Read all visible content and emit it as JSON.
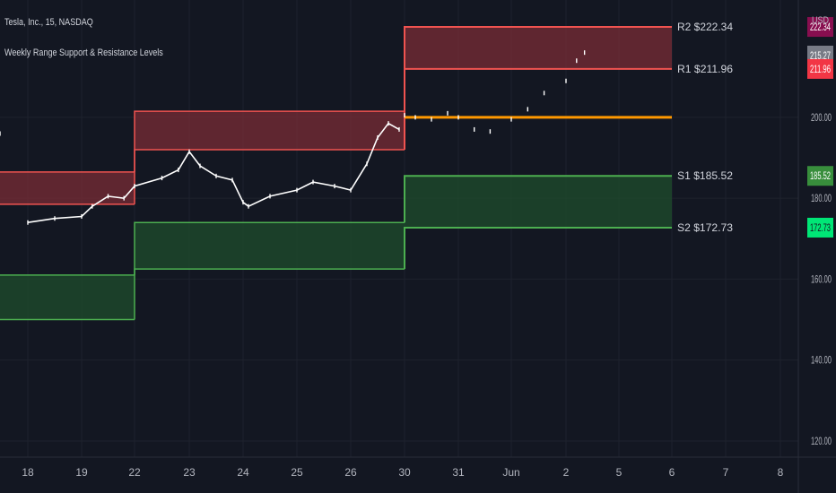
{
  "header": {
    "symbol_line": "Tesla, Inc., 15, NASDAQ",
    "indicator_line": "Weekly Range Support & Resistance Levels"
  },
  "price_axis": {
    "currency": "USD"
  },
  "colors": {
    "background": "#131722",
    "grid": "#1e222d",
    "resistance_line": "#f05350",
    "resistance_fill": "#7a2c35",
    "support_line": "#4caf50",
    "support_fill": "#1e4a2c",
    "pivot_line": "#ff9800",
    "price_series": "#ffffff",
    "axis_text": "#b2b5be",
    "r2_tag": "#880e4f",
    "r1_tag": "#f23645",
    "last_price_tag": "#787b86",
    "s1_tag": "#388e3c",
    "s2_tag": "#00e676"
  },
  "chart_data": {
    "type": "line",
    "ylim": [
      116,
      229
    ],
    "x_ticks": [
      "18",
      "19",
      "22",
      "23",
      "24",
      "25",
      "26",
      "30",
      "31",
      "Jun",
      "2",
      "5",
      "6",
      "7",
      "8"
    ],
    "y_ticks": [
      "120.00",
      "140.00",
      "160.00",
      "180.00",
      "200.00"
    ],
    "levels": [
      {
        "name": "week1",
        "start_label": "",
        "end_label": "22",
        "r2": 186.5,
        "r1": 178.5,
        "s1": 161.0,
        "s2": 150.0
      },
      {
        "name": "week2",
        "start_label": "22",
        "end_label": "30",
        "r2": 201.5,
        "r1": 192.0,
        "s1": 174.0,
        "s2": 162.5
      },
      {
        "name": "week3",
        "start_label": "30",
        "end_label": "6",
        "r2": 222.34,
        "r1": 211.96,
        "pivot": 200.0,
        "s1": 185.52,
        "s2": 172.73
      }
    ],
    "level_labels": [
      {
        "key": "r2",
        "text": "R2 $222.34",
        "value": 222.34
      },
      {
        "key": "r1",
        "text": "R1 $211.96",
        "value": 211.96
      },
      {
        "key": "s1",
        "text": "S1 $185.52",
        "value": 185.52
      },
      {
        "key": "s2",
        "text": "S2 $172.73",
        "value": 172.73
      }
    ],
    "price_tags": [
      {
        "key": "r2",
        "text": "222.34",
        "value": 222.34
      },
      {
        "key": "last",
        "text": "215.27",
        "value": 215.27
      },
      {
        "key": "r1",
        "text": "211.96",
        "value": 211.96
      },
      {
        "key": "s1",
        "text": "185.52",
        "value": 185.52
      },
      {
        "key": "s2",
        "text": "172.73",
        "value": 172.73
      }
    ],
    "series": [
      {
        "x": [
          "18",
          "18.5",
          "19",
          "19.2",
          "19.5",
          "19.8",
          "22",
          "22.5",
          "22.8",
          "23",
          "23.2",
          "23.5",
          "23.8",
          "24",
          "24.1",
          "24.5",
          "25",
          "25.3",
          "25.7",
          "26",
          "26.3",
          "26.5",
          "26.7",
          "26.9",
          "27",
          "30",
          "30.2",
          "30.5",
          "30.8",
          "31",
          "31.3",
          "31.6",
          "Jun",
          "Jun.3",
          "Jun.6",
          "2",
          "2.2",
          "2.35"
        ],
        "values": [
          174.0,
          175.0,
          175.5,
          178.0,
          180.5,
          180.0,
          183.0,
          185.0,
          187.0,
          191.5,
          188.0,
          185.5,
          184.5,
          179.0,
          178.0,
          180.5,
          182.0,
          184.0,
          183.0,
          182.0,
          188.5,
          195.0,
          198.5,
          197.0,
          196.0,
          200.5,
          200.0,
          199.5,
          201.0,
          200.0,
          197.0,
          196.5,
          199.5,
          202.0,
          206.0,
          209.0,
          214.0,
          216.0
        ]
      }
    ]
  }
}
